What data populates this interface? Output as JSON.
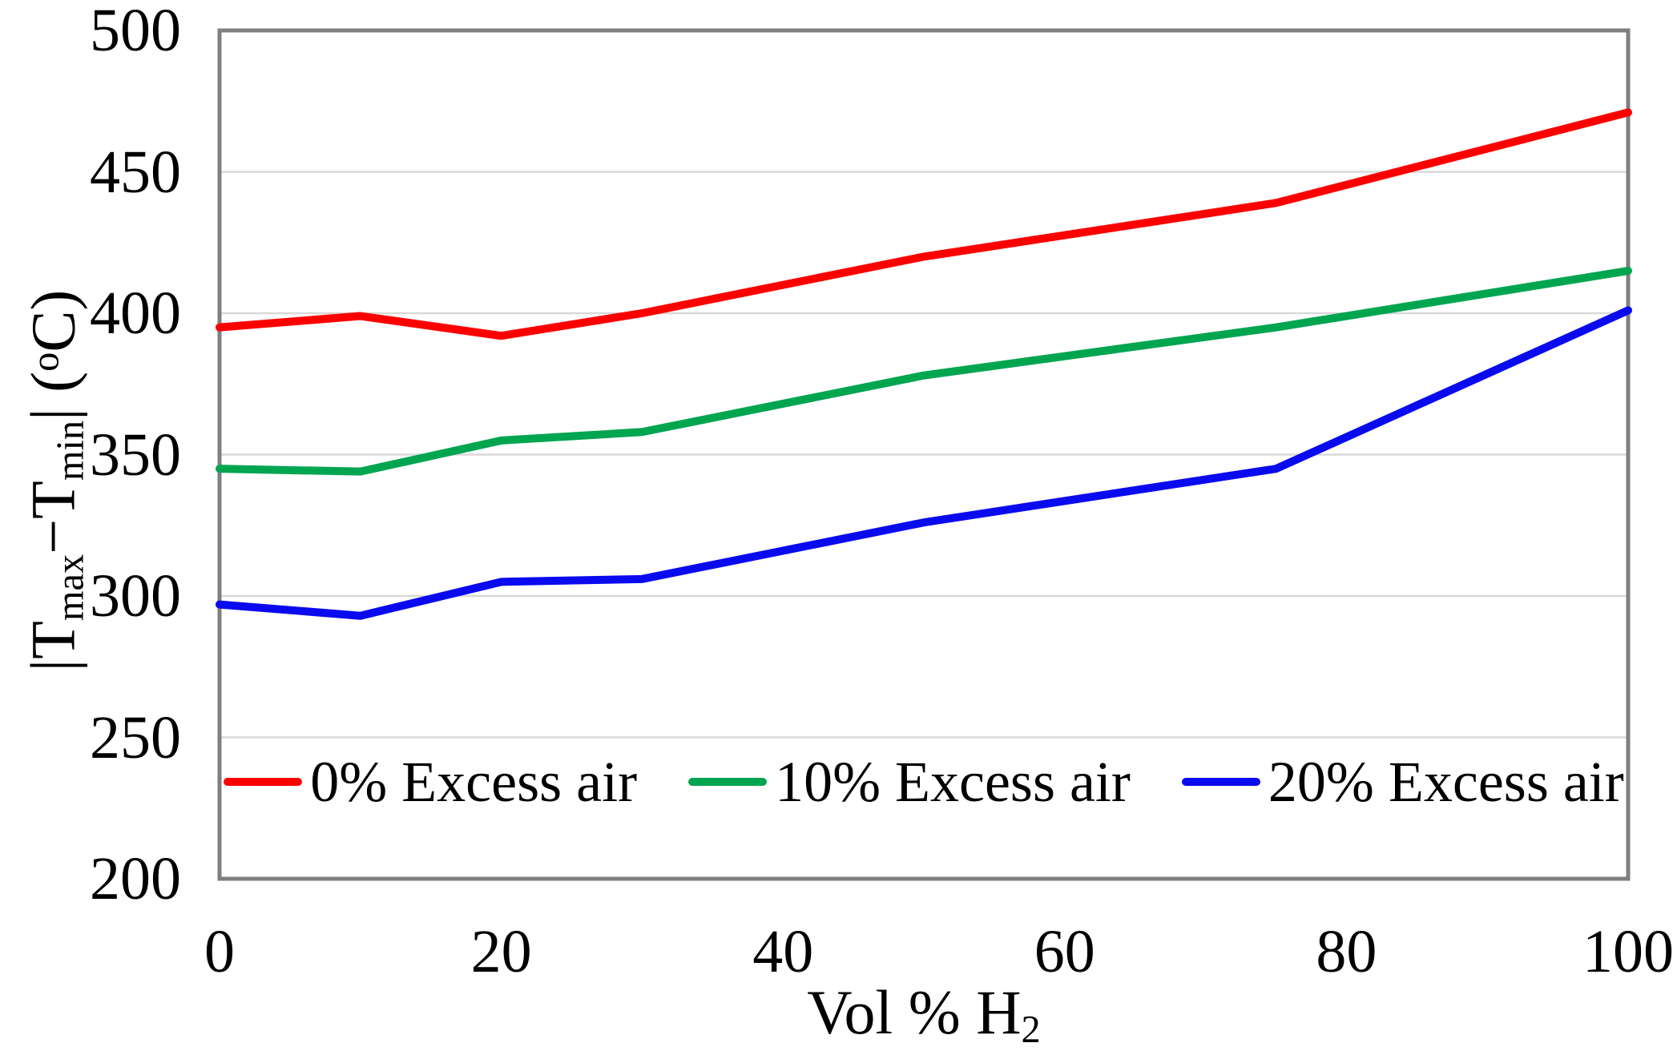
{
  "figure": {
    "y_axis_title": {
      "t1": "|T",
      "sub1": "max",
      "t2": "−T",
      "sub2": "min",
      "t3": "| (",
      "sup1": "o",
      "t4": "C)"
    },
    "x_axis_title": {
      "t1": "Vol % H",
      "sub1": "2"
    }
  },
  "chart_data": {
    "type": "line",
    "title": "",
    "xlabel": "Vol % H2",
    "ylabel": "|Tmax−Tmin| (°C)",
    "x": [
      0,
      10,
      20,
      30,
      50,
      75,
      100
    ],
    "series": [
      {
        "name": "0% Excess air",
        "color": "#FC0000",
        "values": [
          395,
          399,
          392,
          400,
          420,
          439,
          471
        ]
      },
      {
        "name": "10% Excess air",
        "color": "#00A550",
        "values": [
          345,
          344,
          355,
          358,
          378,
          395,
          415
        ]
      },
      {
        "name": "20% Excess air",
        "color": "#0A0AEF",
        "values": [
          297,
          293,
          305,
          306,
          326,
          345,
          401
        ]
      }
    ],
    "xlim": [
      0,
      100
    ],
    "ylim": [
      200,
      500
    ],
    "xticks": [
      0,
      20,
      40,
      60,
      80,
      100
    ],
    "yticks": [
      200,
      250,
      300,
      350,
      400,
      450,
      500
    ],
    "grid": "horizontal",
    "legend_position": "inside-bottom",
    "plot_border_color": "#7F7F7F",
    "gridline_color": "#D9D9D9",
    "text_color": "#000000",
    "line_width": 10
  }
}
